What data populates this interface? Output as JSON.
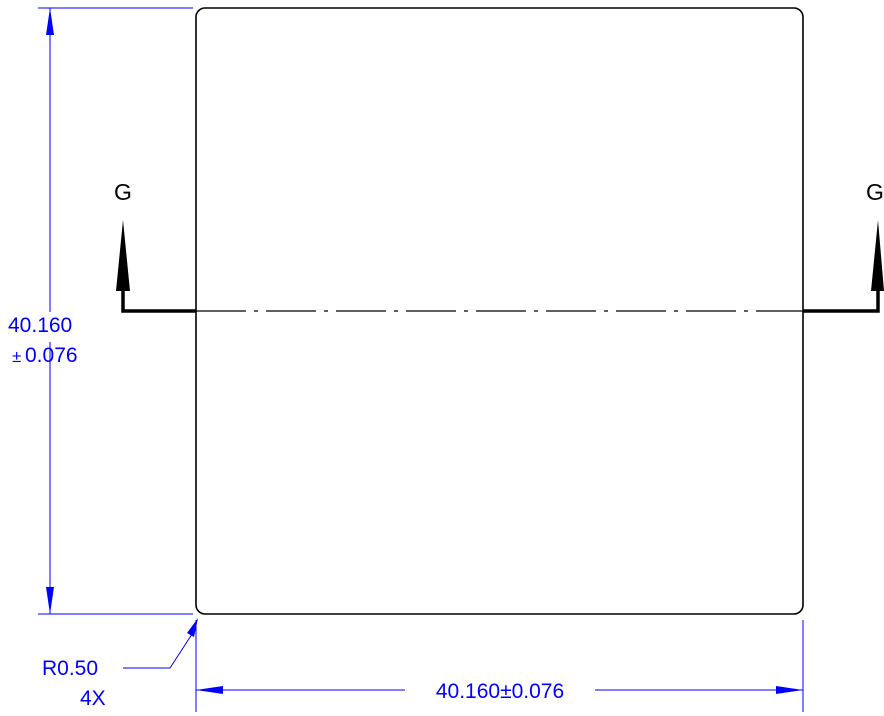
{
  "drawing": {
    "section_marker_left": "G",
    "section_marker_right": "G",
    "vertical_dimension": {
      "value": "40.160",
      "tolerance": "0.076",
      "tolerance_symbol": "±"
    },
    "horizontal_dimension": {
      "text": "40.160±0.076"
    },
    "radius_callout": {
      "value": "R0.50",
      "count": "4X"
    },
    "colors": {
      "geometry": "#000000",
      "dimension": "#0000ff"
    }
  }
}
